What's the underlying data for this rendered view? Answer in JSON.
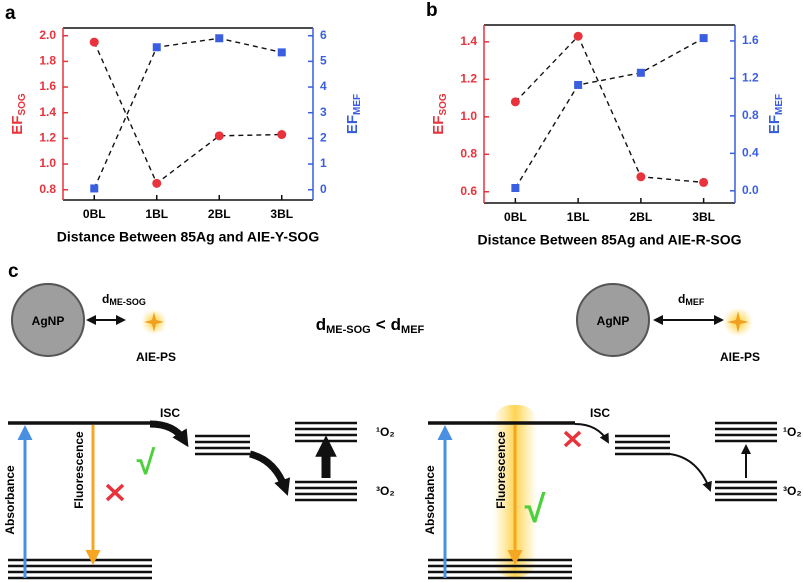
{
  "chart_data": [
    {
      "type": "line",
      "panel": "a",
      "xlabel": "Distance Between 85Ag and AIE-Y-SOG",
      "ylabel": "EF",
      "ylabel_sub": "SOG",
      "y2label": "EF",
      "y2label_sub": "MEF",
      "categories": [
        "0BL",
        "1BL",
        "2BL",
        "3BL"
      ],
      "series": [
        {
          "color": "#e8323c",
          "marker": "circle",
          "values": [
            1.95,
            0.85,
            1.22,
            1.23
          ]
        },
        {
          "color": "#3a5ee0",
          "marker": "square",
          "axis": "y2",
          "values": [
            0.05,
            5.55,
            5.9,
            5.35
          ]
        }
      ],
      "ylim": [
        0.72,
        2.06
      ],
      "yticks": [
        0.8,
        {
          "value": 1,
          "label": "1.0"
        },
        1.2,
        1.4,
        1.6,
        1.8,
        {
          "value": 2,
          "label": "2.0"
        }
      ],
      "y2lim": [
        -0.4,
        6.3
      ],
      "y2ticks": [
        0,
        1,
        2,
        3,
        4,
        5,
        6
      ]
    },
    {
      "type": "line",
      "panel": "b",
      "xlabel": "Distance Between 85Ag and AIE-R-SOG",
      "ylabel": "EF",
      "ylabel_sub": "SOG",
      "y2label": "EF",
      "y2label_sub": "MEF",
      "categories": [
        "0BL",
        "1BL",
        "2BL",
        "3BL"
      ],
      "series": [
        {
          "color": "#e8323c",
          "marker": "circle",
          "values": [
            1.08,
            1.43,
            0.68,
            0.65
          ]
        },
        {
          "color": "#3a5ee0",
          "marker": "square",
          "axis": "y2",
          "values": [
            0.03,
            1.13,
            1.26,
            1.63
          ]
        }
      ],
      "ylim": [
        0.54,
        1.49
      ],
      "yticks": [
        0.6,
        0.8,
        {
          "value": 1,
          "label": "1.0"
        },
        1.2,
        1.4
      ],
      "y2lim": [
        -0.13,
        1.77
      ],
      "y2ticks": [
        {
          "value": 0,
          "label": "0.0"
        },
        0.4,
        0.8,
        1.2,
        1.6
      ]
    }
  ],
  "diagram": {
    "label": "c",
    "comparison": {
      "left": "d",
      "left_sub": "ME-SOG",
      "op": "<",
      "right": "d",
      "right_sub": "MEF"
    },
    "schemes": [
      {
        "particle": "AgNP",
        "distance": "d",
        "distance_sub": "ME-SOG",
        "ps": "AIE-PS",
        "isc": "ISC",
        "singlet": "¹O₂",
        "triplet": "³O₂",
        "absorbance": "Absorbance",
        "fluorescence": "Fluorescence",
        "check": "√"
      },
      {
        "particle": "AgNP",
        "distance": "d",
        "distance_sub": "MEF",
        "ps": "AIE-PS",
        "isc": "ISC",
        "singlet": "¹O₂",
        "triplet": "³O₂",
        "absorbance": "Absorbance",
        "fluorescence": "Fluorescence",
        "check": "√"
      }
    ]
  }
}
